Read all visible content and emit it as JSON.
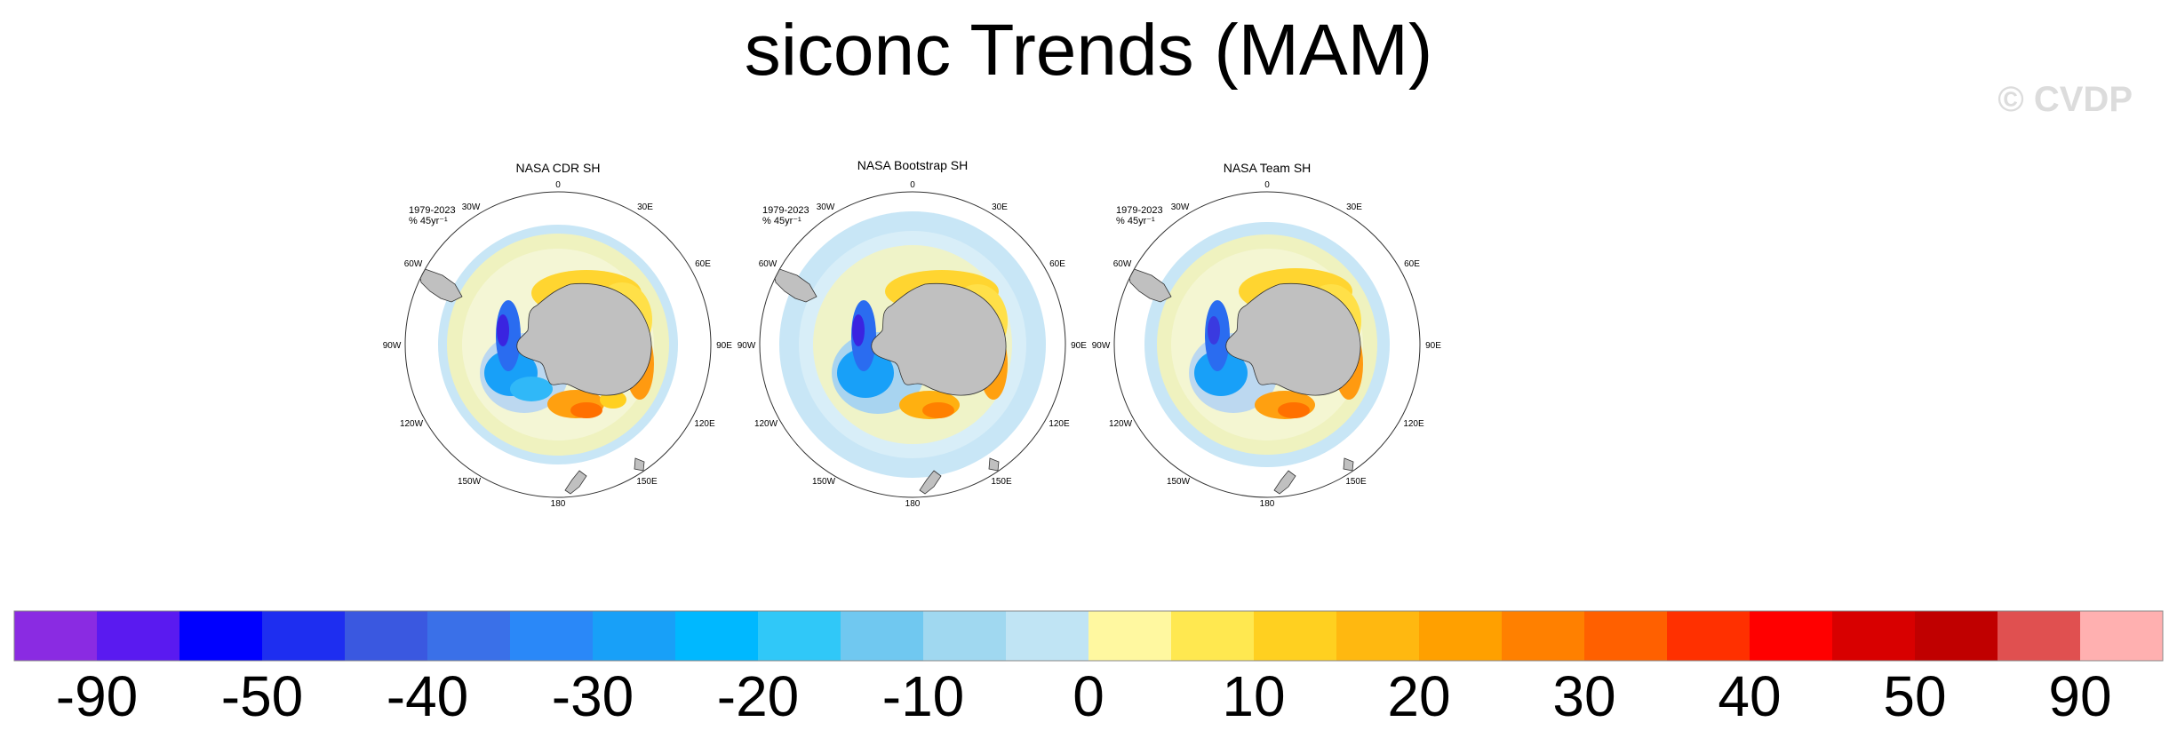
{
  "figure": {
    "title": "siconc Trends (MAM)",
    "watermark": "© CVDP"
  },
  "panels": [
    {
      "title": "NASA CDR SH",
      "period": "1979-2023",
      "units": "% 45yr⁻¹"
    },
    {
      "title": "NASA Bootstrap SH",
      "period": "1979-2023",
      "units": "% 45yr⁻¹"
    },
    {
      "title": "NASA Team SH",
      "period": "1979-2023",
      "units": "% 45yr⁻¹"
    }
  ],
  "longitude_labels": [
    "0",
    "30E",
    "60E",
    "90E",
    "120E",
    "150E",
    "180",
    "150W",
    "120W",
    "90W",
    "60W",
    "30W"
  ],
  "colorbar": {
    "colors": [
      "#8a2be2",
      "#5a1af0",
      "#0000ff",
      "#1e2ef0",
      "#3a58e0",
      "#3a70e8",
      "#2a88f8",
      "#18a0f8",
      "#00b8ff",
      "#30c8f8",
      "#70c8f0",
      "#a0d8f0",
      "#c0e4f4",
      "#fff8a0",
      "#ffe850",
      "#ffd020",
      "#ffb810",
      "#ffa000",
      "#ff8000",
      "#ff6000",
      "#ff3000",
      "#ff0000",
      "#d80000",
      "#c00000",
      "#e05050",
      "#ffb0b0"
    ],
    "tick_labels": [
      "-90",
      "-50",
      "-40",
      "-30",
      "-20",
      "-10",
      "0",
      "10",
      "20",
      "30",
      "40",
      "50",
      "90"
    ],
    "land_color": "#c0c0c0"
  }
}
